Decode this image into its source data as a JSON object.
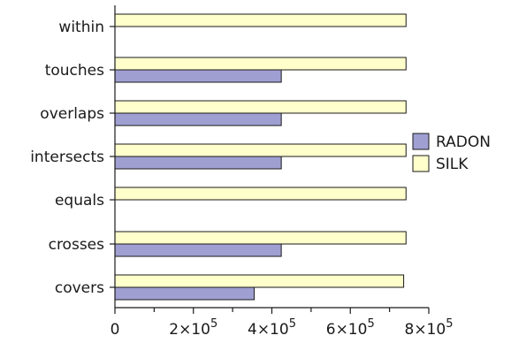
{
  "chart_data": {
    "type": "bar",
    "orientation": "horizontal",
    "title": "",
    "xlabel": "",
    "ylabel": "",
    "categories": [
      "within",
      "touches",
      "overlaps",
      "intersects",
      "equals",
      "crosses",
      "covers"
    ],
    "series": [
      {
        "name": "SILK",
        "color": "#ffffcc",
        "values": [
          742000,
          742000,
          742000,
          742000,
          742000,
          742000,
          736000
        ]
      },
      {
        "name": "RADON",
        "color": "#9f9fd2",
        "values": [
          0,
          424000,
          424000,
          424000,
          0,
          424000,
          355000
        ]
      }
    ],
    "xlim": [
      0,
      800000
    ],
    "xticks": [
      {
        "value": 0,
        "base": "0",
        "exp": ""
      },
      {
        "value": 200000,
        "base": "2×10",
        "exp": "5"
      },
      {
        "value": 400000,
        "base": "4×10",
        "exp": "5"
      },
      {
        "value": 600000,
        "base": "6×10",
        "exp": "5"
      },
      {
        "value": 800000,
        "base": "8×10",
        "exp": "5"
      }
    ],
    "grid": false,
    "legend": {
      "placement": "right",
      "entries": [
        "RADON",
        "SILK"
      ]
    }
  }
}
